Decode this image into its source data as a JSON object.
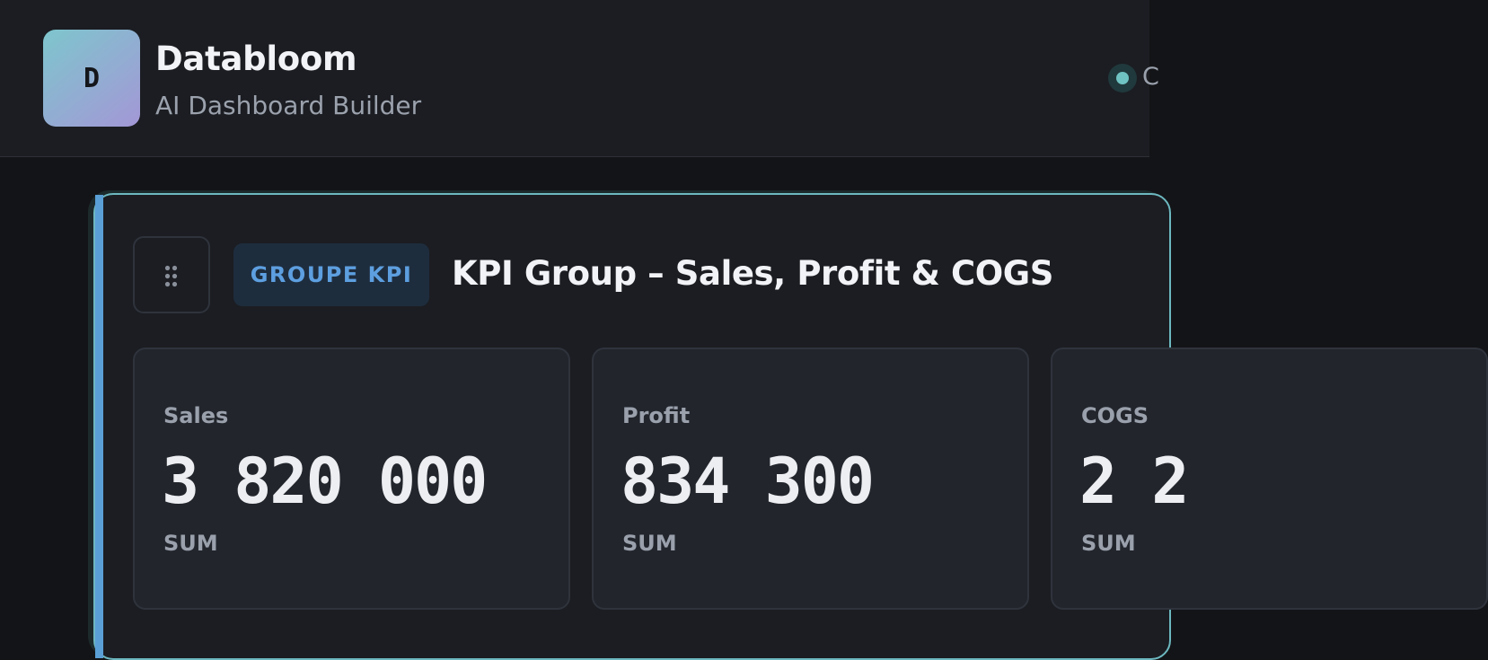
{
  "app": {
    "logo_letter": "D",
    "title": "Databloom",
    "subtitle": "AI Dashboard Builder",
    "status_text": "C",
    "status_color": "#6fc3c2"
  },
  "kpi_group": {
    "badge": "GROUPE KPI",
    "title": "KPI Group – Sales, Profit & COGS",
    "accent_color": "#5a9fd6",
    "border_color": "#6db8c0",
    "cards": [
      {
        "label": "Sales",
        "value": "3 820 000",
        "aggregation": "SUM"
      },
      {
        "label": "Profit",
        "value": "834 300",
        "aggregation": "SUM"
      },
      {
        "label": "COGS",
        "value": "2 2",
        "aggregation": "SUM"
      }
    ]
  },
  "icons": {
    "drag_handle": "drag-handle-icon",
    "status": "status-dot-icon"
  }
}
